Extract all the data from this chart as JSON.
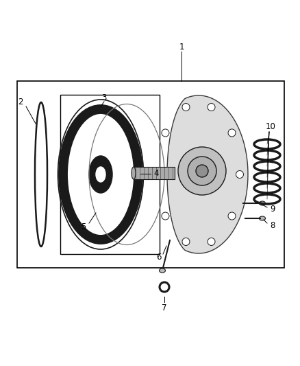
{
  "bg_color": "#ffffff",
  "line_color": "#000000",
  "part_color": "#1a1a1a",
  "gray_color": "#777777",
  "light_gray": "#bbbbbb",
  "fig_width": 4.38,
  "fig_height": 5.33,
  "dpi": 100,
  "label_fontsize": 8.5
}
